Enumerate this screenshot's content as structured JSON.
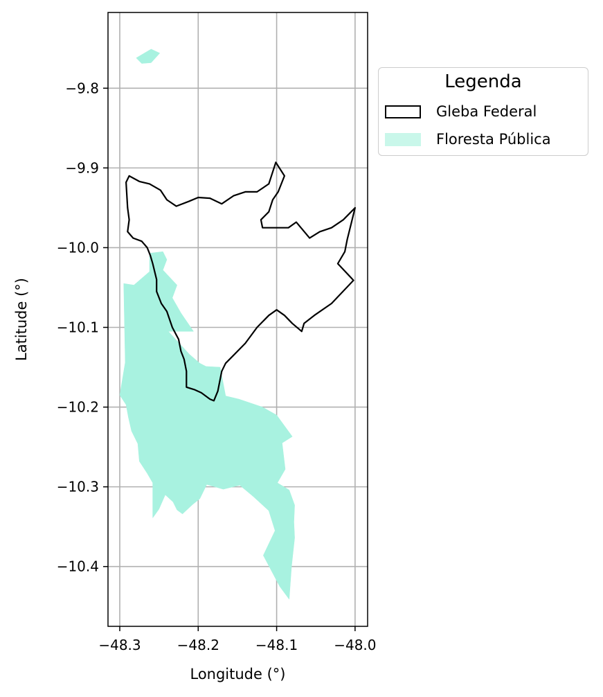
{
  "chart_data": {
    "type": "map",
    "xlabel": "Longitude (°)",
    "ylabel": "Latitude (°)",
    "xlim": [
      -48.315,
      -47.984
    ],
    "ylim": [
      -10.475,
      -9.705
    ],
    "grid": true,
    "x_ticks": [
      -48.3,
      -48.2,
      -48.1,
      -48.0
    ],
    "x_tick_labels": [
      "−48.3",
      "−48.2",
      "−48.1",
      "−48.0"
    ],
    "y_ticks": [
      -9.8,
      -9.9,
      -10.0,
      -10.1,
      -10.2,
      -10.3,
      -10.4
    ],
    "y_tick_labels": [
      "−9.8",
      "−9.9",
      "−10.0",
      "−10.1",
      "−10.2",
      "−10.3",
      "−10.4"
    ],
    "legend": {
      "title": "Legenda",
      "placement": "outside-right",
      "entries": [
        {
          "label": "Gleba Federal",
          "style": "outline",
          "color": "#000000"
        },
        {
          "label": "Floresta Pública",
          "style": "fill",
          "color": "#a8f2e0"
        }
      ]
    },
    "layers": [
      {
        "name": "Floresta Pública",
        "fill": "#a8f2e0",
        "polygons": [
          [
            [
              -48.279,
              -9.762
            ],
            [
              -48.26,
              -9.751
            ],
            [
              -48.249,
              -9.756
            ],
            [
              -48.26,
              -9.768
            ],
            [
              -48.272,
              -9.769
            ]
          ],
          [
            [
              -48.295,
              -10.045
            ],
            [
              -48.282,
              -10.047
            ],
            [
              -48.262,
              -10.03
            ],
            [
              -48.262,
              -10.007
            ],
            [
              -48.245,
              -10.005
            ],
            [
              -48.24,
              -10.015
            ],
            [
              -48.245,
              -10.028
            ],
            [
              -48.227,
              -10.047
            ],
            [
              -48.233,
              -10.063
            ],
            [
              -48.222,
              -10.082
            ],
            [
              -48.206,
              -10.105
            ],
            [
              -48.238,
              -10.105
            ],
            [
              -48.211,
              -10.134
            ],
            [
              -48.198,
              -10.145
            ],
            [
              -48.19,
              -10.149
            ],
            [
              -48.172,
              -10.15
            ],
            [
              -48.165,
              -10.186
            ],
            [
              -48.148,
              -10.19
            ],
            [
              -48.118,
              -10.2
            ],
            [
              -48.1,
              -10.21
            ],
            [
              -48.08,
              -10.237
            ],
            [
              -48.093,
              -10.245
            ],
            [
              -48.089,
              -10.278
            ],
            [
              -48.099,
              -10.295
            ],
            [
              -48.084,
              -10.304
            ],
            [
              -48.077,
              -10.323
            ],
            [
              -48.078,
              -10.344
            ],
            [
              -48.077,
              -10.364
            ],
            [
              -48.081,
              -10.4
            ],
            [
              -48.084,
              -10.441
            ],
            [
              -48.096,
              -10.425
            ],
            [
              -48.117,
              -10.386
            ],
            [
              -48.102,
              -10.355
            ],
            [
              -48.11,
              -10.33
            ],
            [
              -48.13,
              -10.312
            ],
            [
              -48.147,
              -10.298
            ],
            [
              -48.168,
              -10.303
            ],
            [
              -48.189,
              -10.297
            ],
            [
              -48.198,
              -10.315
            ],
            [
              -48.207,
              -10.322
            ],
            [
              -48.22,
              -10.334
            ],
            [
              -48.227,
              -10.329
            ],
            [
              -48.232,
              -10.319
            ],
            [
              -48.242,
              -10.31
            ],
            [
              -48.25,
              -10.328
            ],
            [
              -48.258,
              -10.339
            ],
            [
              -48.258,
              -10.295
            ],
            [
              -48.265,
              -10.283
            ],
            [
              -48.275,
              -10.268
            ],
            [
              -48.277,
              -10.246
            ],
            [
              -48.285,
              -10.23
            ],
            [
              -48.289,
              -10.213
            ],
            [
              -48.292,
              -10.197
            ],
            [
              -48.3,
              -10.185
            ],
            [
              -48.293,
              -10.144
            ]
          ]
        ]
      },
      {
        "name": "Gleba Federal",
        "stroke": "#000000",
        "polygons": [
          [
            [
              -48.288,
              -9.91
            ],
            [
              -48.292,
              -9.918
            ],
            [
              -48.29,
              -9.95
            ],
            [
              -48.288,
              -9.965
            ],
            [
              -48.29,
              -9.98
            ],
            [
              -48.283,
              -9.988
            ],
            [
              -48.272,
              -9.992
            ],
            [
              -48.265,
              -10.0
            ],
            [
              -48.261,
              -10.01
            ],
            [
              -48.258,
              -10.02
            ],
            [
              -48.253,
              -10.04
            ],
            [
              -48.253,
              -10.055
            ],
            [
              -48.247,
              -10.07
            ],
            [
              -48.24,
              -10.08
            ],
            [
              -48.233,
              -10.1
            ],
            [
              -48.225,
              -10.115
            ],
            [
              -48.222,
              -10.13
            ],
            [
              -48.218,
              -10.14
            ],
            [
              -48.215,
              -10.155
            ],
            [
              -48.215,
              -10.175
            ],
            [
              -48.205,
              -10.178
            ],
            [
              -48.196,
              -10.182
            ],
            [
              -48.185,
              -10.19
            ],
            [
              -48.18,
              -10.192
            ],
            [
              -48.175,
              -10.18
            ],
            [
              -48.17,
              -10.155
            ],
            [
              -48.165,
              -10.145
            ],
            [
              -48.155,
              -10.135
            ],
            [
              -48.14,
              -10.12
            ],
            [
              -48.125,
              -10.1
            ],
            [
              -48.11,
              -10.085
            ],
            [
              -48.1,
              -10.078
            ],
            [
              -48.09,
              -10.085
            ],
            [
              -48.08,
              -10.095
            ],
            [
              -48.068,
              -10.105
            ],
            [
              -48.065,
              -10.095
            ],
            [
              -48.052,
              -10.085
            ],
            [
              -48.03,
              -10.07
            ],
            [
              -48.002,
              -10.041
            ],
            [
              -48.022,
              -10.02
            ],
            [
              -48.013,
              -10.005
            ],
            [
              -48.01,
              -9.99
            ],
            [
              -48.0,
              -9.95
            ],
            [
              -48.015,
              -9.965
            ],
            [
              -48.03,
              -9.975
            ],
            [
              -48.045,
              -9.98
            ],
            [
              -48.058,
              -9.988
            ],
            [
              -48.075,
              -9.968
            ],
            [
              -48.085,
              -9.975
            ],
            [
              -48.102,
              -9.975
            ],
            [
              -48.118,
              -9.975
            ],
            [
              -48.12,
              -9.965
            ],
            [
              -48.11,
              -9.955
            ],
            [
              -48.105,
              -9.94
            ],
            [
              -48.098,
              -9.93
            ],
            [
              -48.09,
              -9.91
            ],
            [
              -48.101,
              -9.893
            ],
            [
              -48.11,
              -9.92
            ],
            [
              -48.125,
              -9.93
            ],
            [
              -48.14,
              -9.93
            ],
            [
              -48.155,
              -9.935
            ],
            [
              -48.17,
              -9.945
            ],
            [
              -48.185,
              -9.938
            ],
            [
              -48.2,
              -9.937
            ],
            [
              -48.212,
              -9.942
            ],
            [
              -48.228,
              -9.948
            ],
            [
              -48.24,
              -9.94
            ],
            [
              -48.248,
              -9.928
            ],
            [
              -48.262,
              -9.92
            ],
            [
              -48.275,
              -9.917
            ]
          ]
        ]
      }
    ]
  }
}
